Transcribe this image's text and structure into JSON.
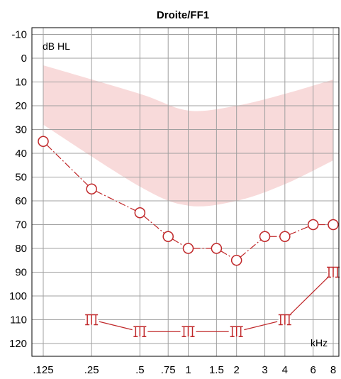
{
  "chart_data": {
    "type": "line",
    "title": "Droite/FF1",
    "ylabel": "dB HL",
    "xlabel": "kHz",
    "y_ticks": [
      "-10",
      "0",
      "10",
      "20",
      "30",
      "40",
      "50",
      "60",
      "70",
      "80",
      "90",
      "100",
      "110",
      "120"
    ],
    "ylim": [
      -13,
      125
    ],
    "y_inverted": true,
    "x_ticks": [
      {
        "value": 0.125,
        "label": ".125"
      },
      {
        "value": 0.25,
        "label": ".25"
      },
      {
        "value": 0.5,
        "label": ".5"
      },
      {
        "value": 0.75,
        "label": ".75"
      },
      {
        "value": 1,
        "label": "1"
      },
      {
        "value": 1.5,
        "label": "1.5"
      },
      {
        "value": 2,
        "label": "2"
      },
      {
        "value": 3,
        "label": "3"
      },
      {
        "value": 4,
        "label": "4"
      },
      {
        "value": 6,
        "label": "6"
      },
      {
        "value": 8,
        "label": "8"
      }
    ],
    "x_scale": "log",
    "grid": true,
    "normal_range_band": {
      "color": "#f8dada",
      "upper": [
        {
          "x": 0.125,
          "y": 3
        },
        {
          "x": 0.5,
          "y": 15
        },
        {
          "x": 1,
          "y": 22
        },
        {
          "x": 2,
          "y": 20
        },
        {
          "x": 4,
          "y": 15
        },
        {
          "x": 8,
          "y": 9
        }
      ],
      "lower": [
        {
          "x": 0.125,
          "y": 28
        },
        {
          "x": 0.5,
          "y": 54
        },
        {
          "x": 1,
          "y": 62
        },
        {
          "x": 2,
          "y": 60
        },
        {
          "x": 4,
          "y": 53
        },
        {
          "x": 8,
          "y": 43
        }
      ]
    },
    "series": [
      {
        "marker": "circle",
        "color": "#c0282a",
        "connected": true,
        "dashed_segments": true,
        "points": [
          {
            "x": 0.125,
            "y": 35
          },
          {
            "x": 0.25,
            "y": 55
          },
          {
            "x": 0.5,
            "y": 65
          },
          {
            "x": 0.75,
            "y": 75
          },
          {
            "x": 1,
            "y": 80
          },
          {
            "x": 1.5,
            "y": 80
          },
          {
            "x": 2,
            "y": 85
          },
          {
            "x": 3,
            "y": 75
          },
          {
            "x": 4,
            "y": 75
          },
          {
            "x": 6,
            "y": 70
          },
          {
            "x": 8,
            "y": 70
          }
        ]
      },
      {
        "marker": "m-symbol",
        "color": "#c0282a",
        "connected": true,
        "dashed_segments": false,
        "points": [
          {
            "x": 0.25,
            "y": 110
          },
          {
            "x": 0.5,
            "y": 115
          },
          {
            "x": 1,
            "y": 115
          },
          {
            "x": 2,
            "y": 115
          },
          {
            "x": 4,
            "y": 110
          },
          {
            "x": 8,
            "y": 90
          }
        ]
      }
    ]
  }
}
